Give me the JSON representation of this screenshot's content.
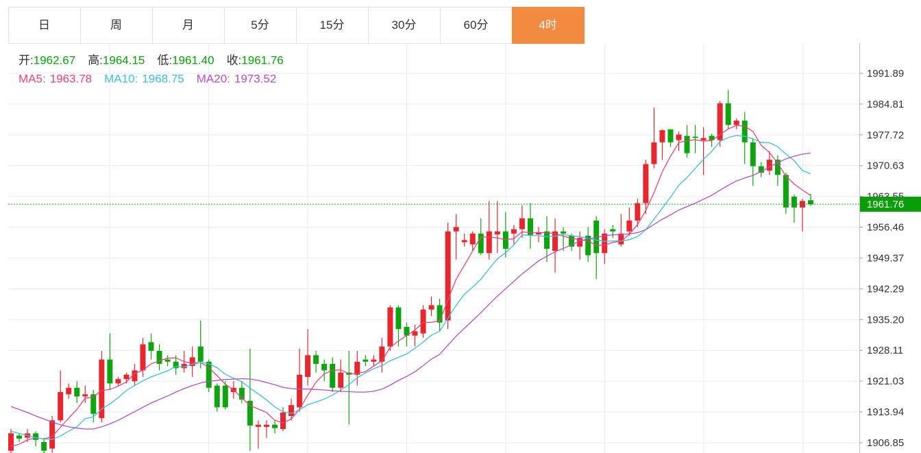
{
  "tabs": [
    {
      "label": "日"
    },
    {
      "label": "周"
    },
    {
      "label": "月"
    },
    {
      "label": "5分"
    },
    {
      "label": "15分"
    },
    {
      "label": "30分"
    },
    {
      "label": "60分"
    },
    {
      "label": "4时",
      "active": true
    }
  ],
  "chart_data": {
    "type": "candlestick",
    "ohlc_legend": [
      {
        "label": "开:",
        "value": "1962.67"
      },
      {
        "label": "高:",
        "value": "1964.15"
      },
      {
        "label": "低:",
        "value": "1961.40"
      },
      {
        "label": "收:",
        "value": "1961.76"
      }
    ],
    "up_color": "#e8262d",
    "down_color": "#0ea40e",
    "legend_value_color": "#0a9e0a",
    "open": [
      1905,
      1908.5,
      1908,
      1909,
      1907,
      1905.5,
      1912,
      1918,
      1919.5,
      1917.5,
      1918,
      1912.5,
      1926,
      1920.5,
      1921.5,
      1921,
      1923.5,
      1930,
      1928,
      1926,
      1925.5,
      1924,
      1924.5,
      1929,
      1925.5,
      1920,
      1920,
      1918.5,
      1919.5,
      1916.5,
      1910.5,
      1910.5,
      1911,
      1910,
      1913,
      1915,
      1922,
      1927,
      1925,
      1925,
      1919.5,
      1923,
      1922.5,
      1926,
      1925.5,
      1925.5,
      1929,
      1938,
      1933.5,
      1931.5,
      1932,
      1937.5,
      1938.5,
      1935,
      1955.5,
      1953,
      1952.5,
      1955,
      1950.5,
      1954.8,
      1955.5,
      1955,
      1956,
      1958.5,
      1954.8,
      1955.5,
      1951,
      1955.5,
      1954.5,
      1952,
      1954.5,
      1958,
      1950.5,
      1956,
      1952.5,
      1955.5,
      1958,
      1962,
      1971,
      1976,
      1979,
      1976.5,
      1977.5,
      1977.3,
      1976.5,
      1977.5,
      1976.5,
      1985,
      1980,
      1981,
      1976,
      1970.5,
      1969.5,
      1972,
      1968.5,
      1963.5,
      1961,
      1962.67
    ],
    "high": [
      1910,
      1909,
      1910,
      1909.5,
      1908,
      1913,
      1923.5,
      1920.5,
      1921,
      1920,
      1919,
      1928,
      1932,
      1922,
      1923,
      1925,
      1931,
      1932,
      1929.5,
      1927,
      1927,
      1928,
      1929,
      1935,
      1926,
      1920.5,
      1921,
      1921,
      1921,
      1928.5,
      1912,
      1912,
      1912,
      1915,
      1917,
      1928.5,
      1933,
      1928,
      1926,
      1926.5,
      1926,
      1928,
      1928,
      1927,
      1927,
      1931,
      1938.5,
      1938.5,
      1934.5,
      1934,
      1938.5,
      1940.5,
      1940,
      1957.5,
      1959.5,
      1955,
      1955.5,
      1958.5,
      1962.5,
      1962.5,
      1960,
      1957,
      1961.5,
      1962,
      1956.5,
      1959,
      1958.5,
      1956.5,
      1955,
      1955.5,
      1956.5,
      1959,
      1956,
      1957,
      1959.5,
      1961,
      1963,
      1972,
      1984,
      1979,
      1979,
      1978.5,
      1980,
      1980,
      1979.5,
      1978,
      1985.5,
      1988,
      1981.5,
      1983,
      1977,
      1971.5,
      1974,
      1973,
      1969,
      1964,
      1963,
      1964.15
    ],
    "low": [
      1904.5,
      1907,
      1907,
      1906,
      1904.5,
      1904.5,
      1911.5,
      1917,
      1916,
      1916,
      1911.5,
      1911.5,
      1919,
      1920,
      1920.5,
      1920,
      1922,
      1926,
      1923.5,
      1924.5,
      1922.5,
      1923,
      1922,
      1924,
      1918.5,
      1914,
      1914.5,
      1917,
      1916,
      1905,
      1905.5,
      1908,
      1909,
      1909.5,
      1912,
      1914,
      1920,
      1923,
      1921,
      1918.5,
      1918.5,
      1911,
      1920,
      1924.5,
      1924.5,
      1923,
      1928,
      1929,
      1929,
      1929,
      1931,
      1936,
      1932.5,
      1933,
      1949,
      1952,
      1951,
      1950,
      1949,
      1950.5,
      1949.5,
      1952.5,
      1954,
      1951.5,
      1953,
      1948.5,
      1946,
      1951,
      1951,
      1949,
      1948.5,
      1944.5,
      1948,
      1954,
      1952,
      1954.5,
      1956.5,
      1959.5,
      1970,
      1972,
      1975,
      1974,
      1972.5,
      1973.5,
      1968.5,
      1975,
      1975,
      1979,
      1979,
      1971,
      1966,
      1968,
      1968.5,
      1966,
      1959.5,
      1957.5,
      1955.5,
      1961.4
    ],
    "close": [
      1909,
      1907.8,
      1909,
      1907.5,
      1905,
      1912,
      1918.5,
      1919.5,
      1917.5,
      1918,
      1913.5,
      1926,
      1920.5,
      1921.5,
      1922.5,
      1923.5,
      1929.5,
      1928,
      1925,
      1925.5,
      1924,
      1925,
      1926.5,
      1925.5,
      1919.5,
      1915,
      1915,
      1919.5,
      1916.8,
      1910.8,
      1911,
      1911,
      1910.2,
      1913.8,
      1915.5,
      1922.5,
      1927,
      1925,
      1923.5,
      1919.5,
      1923,
      1922.5,
      1925.5,
      1925.5,
      1926,
      1929,
      1938,
      1933,
      1931.5,
      1932.5,
      1937.5,
      1938.5,
      1934.5,
      1955.5,
      1956.5,
      1953.5,
      1955,
      1950.5,
      1955.5,
      1955.5,
      1951.5,
      1956,
      1958.5,
      1954.5,
      1955.3,
      1951.5,
      1955.5,
      1955,
      1952,
      1954,
      1950,
      1950.5,
      1955,
      1955.5,
      1955,
      1958,
      1962,
      1971,
      1976,
      1978.8,
      1976,
      1977.8,
      1973.5,
      1977,
      1977,
      1976.5,
      1985,
      1980,
      1981,
      1976,
      1970.5,
      1969,
      1972,
      1968.5,
      1961,
      1961,
      1962.5,
      1961.76
    ],
    "ma_series": [
      {
        "name": "MA5:",
        "value_label": "1963.78",
        "color": "#e5447a",
        "values": [
          1906,
          1906.5,
          1907.5,
          1908,
          1907.7,
          1908.3,
          1910.4,
          1912.5,
          1914.5,
          1917.1,
          1917.4,
          1918.9,
          1919.1,
          1919.9,
          1920.8,
          1922.8,
          1923.5,
          1925,
          1925.7,
          1926.3,
          1926.4,
          1925.5,
          1925.2,
          1925.3,
          1924.1,
          1922.3,
          1920.3,
          1919,
          1917.2,
          1915.4,
          1914.6,
          1913.8,
          1912,
          1911.4,
          1912.3,
          1914.6,
          1917.8,
          1920.8,
          1922.7,
          1923.5,
          1923.6,
          1922.7,
          1922.8,
          1923.2,
          1924.5,
          1925.7,
          1928.8,
          1930.3,
          1931.5,
          1932.8,
          1934.5,
          1934.6,
          1934.9,
          1939.7,
          1944.5,
          1947.7,
          1951,
          1954.2,
          1954.2,
          1954,
          1953.6,
          1953.8,
          1955.4,
          1955.2,
          1955.2,
          1955.2,
          1955,
          1954.4,
          1953.9,
          1953.6,
          1953.3,
          1952.3,
          1952.3,
          1953,
          1953.2,
          1954.8,
          1957.1,
          1960.3,
          1964.4,
          1969.2,
          1972.8,
          1975.9,
          1976.4,
          1976.6,
          1976.3,
          1976.4,
          1977.8,
          1979.1,
          1979.9,
          1979.7,
          1978.5,
          1975.3,
          1973.7,
          1971.2,
          1968.2,
          1966.4,
          1965,
          1963.78
        ]
      },
      {
        "name": "MA10:",
        "value_label": "1968.75",
        "color": "#3dbfd8",
        "values": [
          1909.5,
          1909,
          1908.5,
          1908,
          1907.7,
          1907.6,
          1908.4,
          1909.5,
          1910.5,
          1912.4,
          1912.8,
          1914.6,
          1915.8,
          1917.2,
          1918.9,
          1920,
          1921.1,
          1922,
          1922.7,
          1923.4,
          1924.4,
          1924.3,
          1924.9,
          1925.3,
          1925,
          1924.1,
          1922.6,
          1921.7,
          1920.9,
          1919.4,
          1918.1,
          1916.7,
          1915.1,
          1914,
          1913.6,
          1914.4,
          1915.6,
          1916.2,
          1916.9,
          1917.8,
          1919,
          1920.2,
          1921.8,
          1922.9,
          1923.9,
          1924.6,
          1925.7,
          1926.5,
          1927.3,
          1928.6,
          1930,
          1931.6,
          1932.5,
          1935.5,
          1938.5,
          1941,
          1942.7,
          1944.5,
          1946.9,
          1949.2,
          1950.6,
          1952.4,
          1954.7,
          1954.6,
          1954.5,
          1954.3,
          1954.4,
          1954.8,
          1954.5,
          1954.3,
          1953.9,
          1953.5,
          1953.2,
          1953.3,
          1953.3,
          1953.6,
          1954.3,
          1955.9,
          1958.3,
          1960.8,
          1963.4,
          1966.1,
          1967.9,
          1970,
          1972.1,
          1973.9,
          1976.2,
          1977.1,
          1977.6,
          1977.4,
          1976.8,
          1976,
          1975.9,
          1975,
          1973.3,
          1971.8,
          1969.5,
          1968.75
        ]
      },
      {
        "name": "MA20:",
        "value_label": "1973.52",
        "color": "#b24fc6",
        "values": [
          1915.2,
          1914.5,
          1913.8,
          1913,
          1912.3,
          1911.6,
          1911,
          1910.5,
          1910.2,
          1910,
          1910,
          1910.5,
          1911.2,
          1912,
          1913,
          1914,
          1915,
          1916,
          1916.8,
          1917.6,
          1918.5,
          1919.3,
          1920,
          1920.6,
          1921,
          1921.2,
          1921.4,
          1921.5,
          1921.6,
          1921.5,
          1921.2,
          1920.7,
          1920.2,
          1919.6,
          1919.3,
          1919.2,
          1919.2,
          1919.1,
          1919,
          1918.8,
          1918.7,
          1918.6,
          1918.5,
          1918.5,
          1918.7,
          1919.2,
          1920.1,
          1921.2,
          1922.1,
          1923.2,
          1924.6,
          1926.1,
          1927.2,
          1929.3,
          1931.4,
          1933.2,
          1935,
          1936.8,
          1938.7,
          1940.6,
          1942.3,
          1944,
          1945.7,
          1947.2,
          1948.7,
          1949.8,
          1950.8,
          1951.6,
          1952.4,
          1953.3,
          1953.8,
          1954.1,
          1954.5,
          1954.7,
          1954.8,
          1954.9,
          1955.2,
          1955.9,
          1957.1,
          1958.3,
          1959.3,
          1960.4,
          1961.2,
          1962,
          1962.9,
          1963.8,
          1965,
          1966.1,
          1967.1,
          1967.8,
          1968.4,
          1969.3,
          1970.3,
          1971.3,
          1972.2,
          1972.8,
          1973.3,
          1973.52
        ]
      }
    ],
    "last_price": 1961.76,
    "ylim": [
      1904.48,
      1998.83
    ],
    "yticks": [
      1906.85,
      1913.94,
      1921.03,
      1928.11,
      {
        "value": 1935.2,
        "label": "1935.20"
      },
      1942.29,
      1949.37,
      1956.46,
      1963.55,
      1970.63,
      1977.72,
      1984.81,
      1991.89
    ],
    "grid": true
  }
}
